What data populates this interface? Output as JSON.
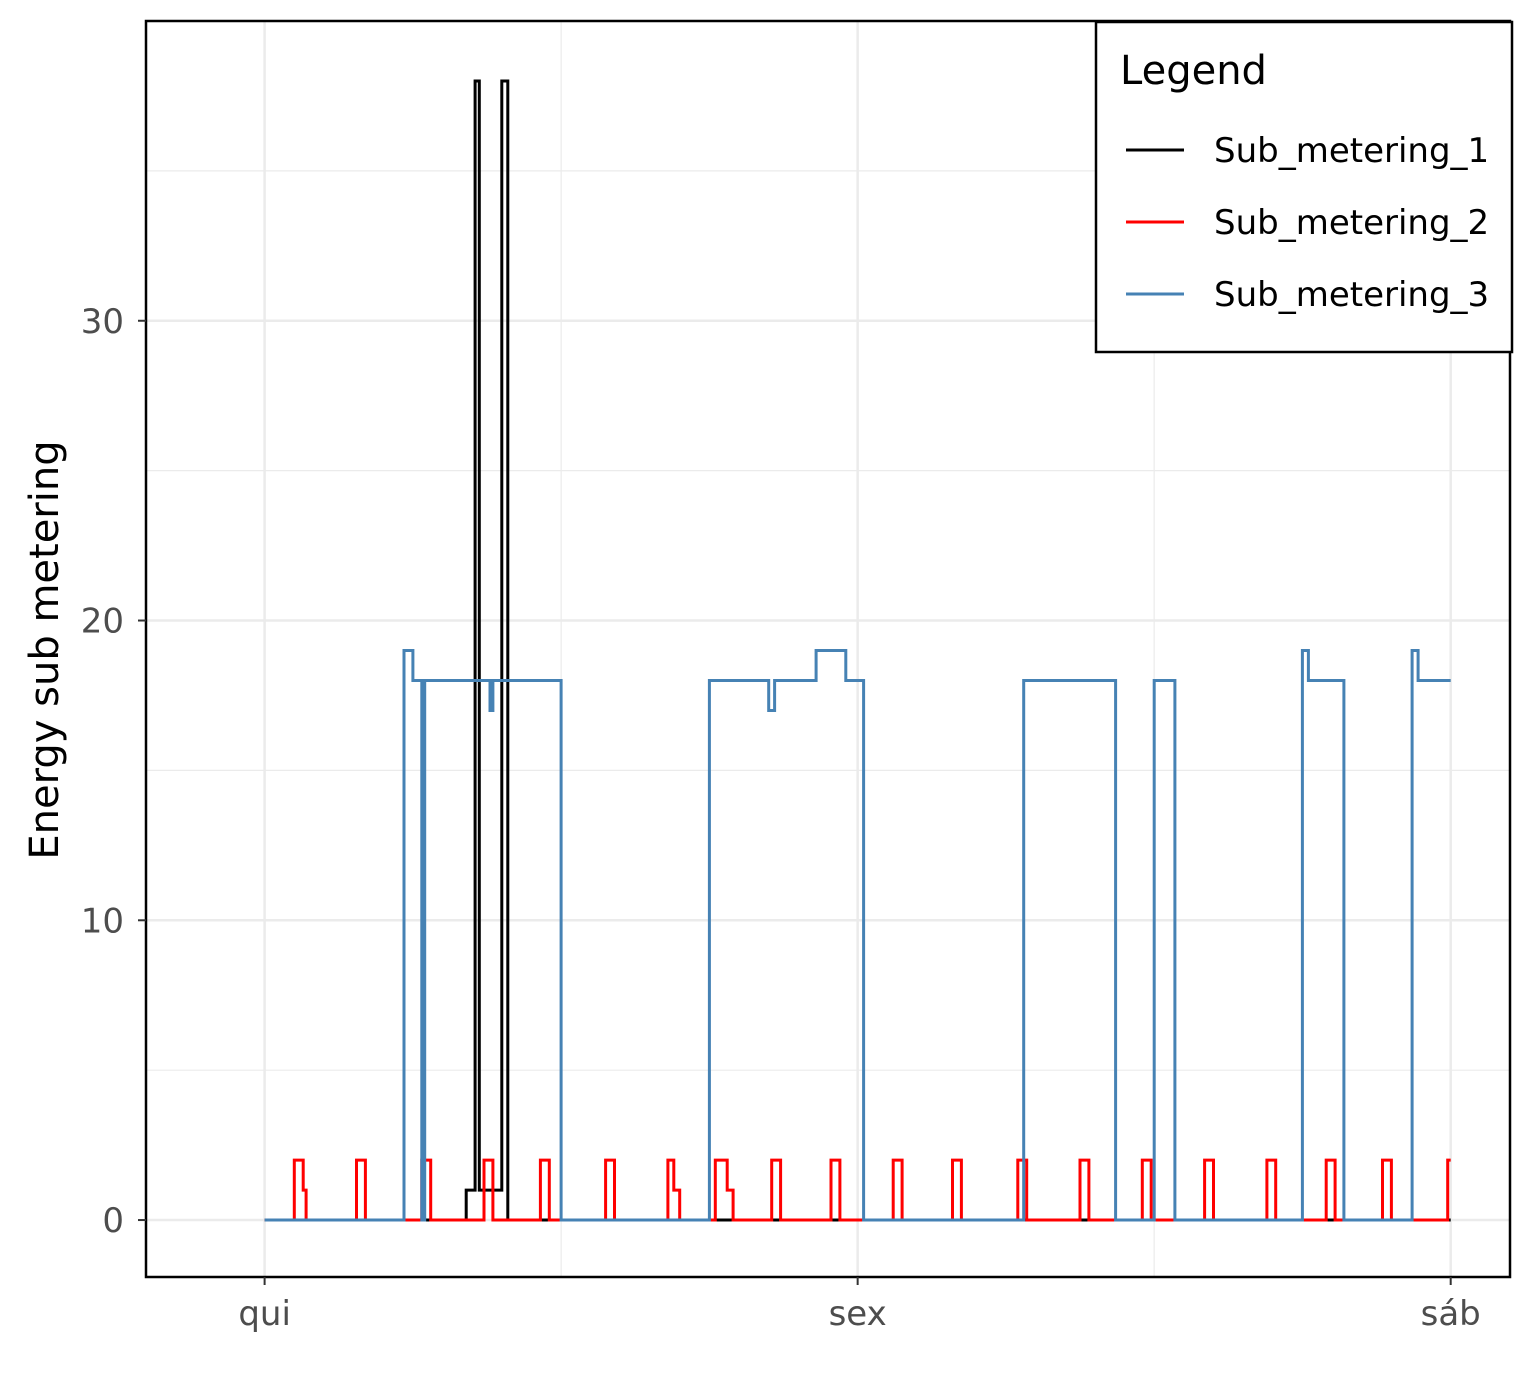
{
  "chart_data": {
    "type": "line",
    "title": "",
    "xlabel": "",
    "ylabel": "Energy sub metering",
    "x_ticks": [
      "qui",
      "sex",
      "sáb"
    ],
    "y_ticks": [
      "0",
      "10",
      "20",
      "30"
    ],
    "ylim": [
      -1.9,
      40
    ],
    "grid": true,
    "legend_placement": "top-right",
    "legend_title": "Legend",
    "series": [
      {
        "name": "Sub_metering_1",
        "color": "#000000",
        "points": [
          [
            0,
            0
          ],
          [
            0.34,
            0
          ],
          [
            0.34,
            1
          ],
          [
            0.355,
            1
          ],
          [
            0.355,
            38
          ],
          [
            0.362,
            38
          ],
          [
            0.362,
            1
          ],
          [
            0.4,
            1
          ],
          [
            0.4,
            38
          ],
          [
            0.41,
            38
          ],
          [
            0.41,
            0
          ],
          [
            2.0,
            0
          ]
        ]
      },
      {
        "name": "Sub_metering_2",
        "color": "#ff0000",
        "points": [
          [
            0,
            0
          ],
          [
            0.05,
            0
          ],
          [
            0.05,
            2
          ],
          [
            0.065,
            2
          ],
          [
            0.065,
            1
          ],
          [
            0.07,
            1
          ],
          [
            0.07,
            0
          ],
          [
            0.155,
            0
          ],
          [
            0.155,
            2
          ],
          [
            0.17,
            2
          ],
          [
            0.17,
            0
          ],
          [
            0.265,
            0
          ],
          [
            0.265,
            2
          ],
          [
            0.28,
            2
          ],
          [
            0.28,
            0
          ],
          [
            0.37,
            0
          ],
          [
            0.37,
            2
          ],
          [
            0.385,
            2
          ],
          [
            0.385,
            0
          ],
          [
            0.465,
            0
          ],
          [
            0.465,
            2
          ],
          [
            0.48,
            2
          ],
          [
            0.48,
            0
          ],
          [
            0.575,
            0
          ],
          [
            0.575,
            2
          ],
          [
            0.59,
            2
          ],
          [
            0.59,
            0
          ],
          [
            0.68,
            0
          ],
          [
            0.68,
            2
          ],
          [
            0.69,
            2
          ],
          [
            0.69,
            1
          ],
          [
            0.7,
            1
          ],
          [
            0.7,
            0
          ],
          [
            0.76,
            0
          ],
          [
            0.76,
            2
          ],
          [
            0.78,
            2
          ],
          [
            0.78,
            1
          ],
          [
            0.79,
            1
          ],
          [
            0.79,
            0
          ],
          [
            0.855,
            0
          ],
          [
            0.855,
            2
          ],
          [
            0.87,
            2
          ],
          [
            0.87,
            0
          ],
          [
            0.955,
            0
          ],
          [
            0.955,
            2
          ],
          [
            0.97,
            2
          ],
          [
            0.97,
            0
          ],
          [
            1.06,
            0
          ],
          [
            1.06,
            2
          ],
          [
            1.075,
            2
          ],
          [
            1.075,
            0
          ],
          [
            1.16,
            0
          ],
          [
            1.16,
            2
          ],
          [
            1.175,
            2
          ],
          [
            1.175,
            0
          ],
          [
            1.27,
            0
          ],
          [
            1.27,
            2
          ],
          [
            1.285,
            2
          ],
          [
            1.285,
            0
          ],
          [
            1.375,
            0
          ],
          [
            1.375,
            2
          ],
          [
            1.39,
            2
          ],
          [
            1.39,
            0
          ],
          [
            1.48,
            0
          ],
          [
            1.48,
            2
          ],
          [
            1.495,
            2
          ],
          [
            1.495,
            0
          ],
          [
            1.585,
            0
          ],
          [
            1.585,
            2
          ],
          [
            1.6,
            2
          ],
          [
            1.6,
            0
          ],
          [
            1.69,
            0
          ],
          [
            1.69,
            2
          ],
          [
            1.705,
            2
          ],
          [
            1.705,
            0
          ],
          [
            1.79,
            0
          ],
          [
            1.79,
            2
          ],
          [
            1.805,
            2
          ],
          [
            1.805,
            0
          ],
          [
            1.885,
            0
          ],
          [
            1.885,
            2
          ],
          [
            1.9,
            2
          ],
          [
            1.9,
            0
          ],
          [
            1.995,
            0
          ],
          [
            1.995,
            2
          ],
          [
            2.0,
            2
          ]
        ]
      },
      {
        "name": "Sub_metering_3",
        "color": "#4682b4",
        "points": [
          [
            0,
            0
          ],
          [
            0.235,
            0
          ],
          [
            0.235,
            19
          ],
          [
            0.25,
            19
          ],
          [
            0.25,
            18
          ],
          [
            0.265,
            18
          ],
          [
            0.265,
            0
          ],
          [
            0.27,
            0
          ],
          [
            0.27,
            18
          ],
          [
            0.38,
            18
          ],
          [
            0.38,
            17
          ],
          [
            0.385,
            17
          ],
          [
            0.385,
            18
          ],
          [
            0.5,
            18
          ],
          [
            0.5,
            0
          ],
          [
            0.75,
            0
          ],
          [
            0.75,
            18
          ],
          [
            0.85,
            18
          ],
          [
            0.85,
            17
          ],
          [
            0.86,
            17
          ],
          [
            0.86,
            18
          ],
          [
            0.93,
            18
          ],
          [
            0.93,
            19
          ],
          [
            0.98,
            19
          ],
          [
            0.98,
            18
          ],
          [
            1.01,
            18
          ],
          [
            1.01,
            0
          ],
          [
            1.28,
            0
          ],
          [
            1.28,
            18
          ],
          [
            1.435,
            18
          ],
          [
            1.435,
            0
          ],
          [
            1.5,
            0
          ],
          [
            1.5,
            18
          ],
          [
            1.535,
            18
          ],
          [
            1.535,
            0
          ],
          [
            1.75,
            0
          ],
          [
            1.75,
            19
          ],
          [
            1.76,
            19
          ],
          [
            1.76,
            18
          ],
          [
            1.82,
            18
          ],
          [
            1.82,
            0
          ],
          [
            1.935,
            0
          ],
          [
            1.935,
            19
          ],
          [
            1.945,
            19
          ],
          [
            1.945,
            18
          ],
          [
            2.0,
            18
          ]
        ]
      }
    ]
  }
}
